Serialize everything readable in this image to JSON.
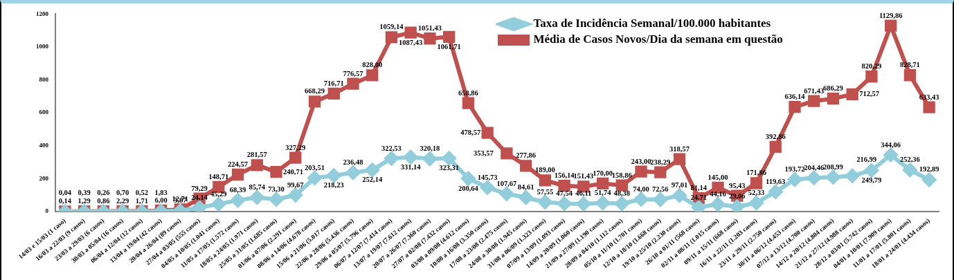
{
  "chart_data": {
    "type": "line",
    "categories": [
      "14/03 e 15/03 (1 caso)",
      "16/03 a 22/03 (9 casos)",
      "23/03 a 29/03 (6 casos)",
      "30/03 a 05/04 (16 casos)",
      "06/04 a 12/04 (12 casos)",
      "13/04 a 19/04 (42 casos)",
      "20/04 a 26/04 (89 casos)",
      "27/04 a 03/05 (555 casos)",
      "04/05 a 10/05 (1.041 casos)",
      "11/05 a 17/05 (1.572 casos)",
      "18/05 a 24/05 (1.971 casos)",
      "25/05 a 31/05 (1.685 casos)",
      "01/06 a 07/06 (2.291 casos)",
      "08/06 a 14/06 (4.678 casos)",
      "15/06 a 21/06 (5.017 casos)",
      "22/06 a 28/06 (5.436 casos)",
      "29/06 a 05/07 (5.796 casos)",
      "06/07 a 12/07 (7.414 casos)",
      "13/07 a 19/07 (7.612 casos)",
      "20/07 a 26/07 (7.360 casos)",
      "27/07 a 02/08 (7.432 casos)",
      "03/08 a 09/08 (4.612 casos)",
      "10/08 a 16/08 (3.350 casos)",
      "17/08 a 23/08 (2.475 casos)",
      "24/08 a 30/08 (1.945 casos)",
      "31/08 a 06/09 (1.323 casos)",
      "07/09 a 13/09 (1.093 casos)",
      "14/09 a 20/09 (1.060 casos)",
      "21/09 a 27/09 (1.190 casos)",
      "28/09 a 04/10 (1.112 casos)",
      "05/10 a 11/10 (1.701 casos)",
      "12/10 a 18/10 (1.668 casos)",
      "19/10 a 25/10 (2.230 casos)",
      "26/10 a 01/11 (568 casos)",
      "02/11 a 08/11 (1.015 casos)",
      "09/11 a 15/11 (668 casos)",
      "16/11 a 22/11 (1.203 casos)",
      "23/11 a 29/11 (2.750 casos)",
      "30/11 a 06/12 (4.453 casos)",
      "07/12 a 13/12 (4.700 casos)",
      "14/12 a 20/12 (4.804 casos)",
      "21/12 a 27/12 (4.988 casos)",
      "28/12 a 03/01 (5.742 casos)",
      "04/01 a 10/01 (7.909 casos)",
      "11/01 a 17/01 (5.801 casos)",
      "18/01 a 24/01 (4.434 casos)"
    ],
    "series": [
      {
        "name": "Taxa de Incidência Semanal/100.000 habitantes",
        "color": "#92cddc",
        "marker": "diamond",
        "values": [
          0.04,
          0.39,
          0.26,
          0.7,
          0.52,
          1.83,
          3.87,
          24.14,
          45.29,
          68.39,
          85.74,
          73.3,
          99.67,
          203.51,
          218.23,
          236.48,
          252.14,
          322.53,
          331.14,
          320.18,
          323.31,
          200.64,
          145.73,
          107.67,
          84.61,
          57.55,
          47.54,
          46.11,
          51.74,
          48.38,
          74.0,
          72.56,
          97.01,
          24.71,
          44.16,
          29.06,
          52.33,
          119.63,
          193.72,
          204.46,
          208.99,
          216.99,
          249.79,
          344.06,
          252.36,
          192.89
        ],
        "value_labels": [
          "0,04",
          "0,39",
          "0,26",
          "0,70",
          "0,52",
          "1,83",
          "3,87",
          "24,14",
          "45,29",
          "68,39",
          "85,74",
          "73,30",
          "99,67",
          "203,51",
          "218,23",
          "236,48",
          "252,14",
          "322,53",
          "331,14",
          "320,18",
          "323,31",
          "200,64",
          "145,73",
          "107,67",
          "84,61",
          "57,55",
          "47,54",
          "46,11",
          "51,74",
          "48,38",
          "74,00",
          "72,56",
          "97,01",
          "24,71",
          "44,16",
          "29,06",
          "52,33",
          "119,63",
          "193,72",
          "204,46",
          "208,99",
          "216,99",
          "249,79",
          "344,06",
          "252,36",
          "192,89"
        ]
      },
      {
        "name": "Média de Casos Novos/Dia da semana em questão",
        "color": "#c0504d",
        "marker": "square",
        "values": [
          0.14,
          1.29,
          0.86,
          2.29,
          1.71,
          6.0,
          12.71,
          79.29,
          148.71,
          224.57,
          281.57,
          240.71,
          327.29,
          668.29,
          716.71,
          776.57,
          828.0,
          1059.14,
          1087.43,
          1051.43,
          1061.71,
          658.86,
          478.57,
          353.57,
          277.86,
          189.0,
          156.14,
          151.43,
          170.0,
          158.86,
          243.0,
          238.29,
          318.57,
          81.14,
          145.0,
          95.43,
          171.86,
          392.86,
          636.14,
          671.43,
          686.29,
          712.57,
          820.29,
          1129.86,
          828.71,
          633.43
        ],
        "value_labels": [
          "0,14",
          "1,29",
          "0,86",
          "2,29",
          "1,71",
          "6,00",
          "12,71",
          "79,29",
          "148,71",
          "224,57",
          "281,57",
          "240,71",
          "327,29",
          "668,29",
          "716,71",
          "776,57",
          "828,00",
          "1059,14",
          "1087,43",
          "1051,43",
          "1061,71",
          "658,86",
          "478,57",
          "353,57",
          "277,86",
          "189,00",
          "156,14",
          "151,43",
          "170,00",
          "158,86",
          "243,00",
          "238,29",
          "318,57",
          "81,14",
          "145,00",
          "95,43",
          "171,86",
          "392,86",
          "636,14",
          "671,43",
          "686,29",
          "712,57",
          "820,29",
          "1129,86",
          "828,71",
          "633,43"
        ]
      }
    ],
    "ylim": [
      0,
      1200
    ],
    "yticks": [
      0,
      200,
      400,
      600,
      800,
      1000,
      1200
    ],
    "grid": false,
    "legend": "top right",
    "data_labels": true,
    "line_style": "solid"
  }
}
